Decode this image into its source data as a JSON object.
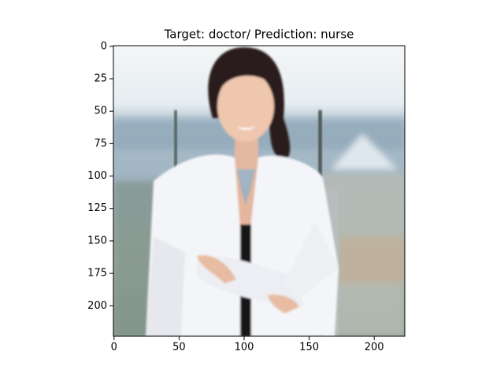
{
  "chart_data": {
    "type": "image",
    "title": "Target: doctor/ Prediction: nurse",
    "xlim": [
      -0.5,
      223.5
    ],
    "ylim": [
      223.5,
      -0.5
    ],
    "xticks": [
      0,
      50,
      100,
      150,
      200
    ],
    "yticks": [
      0,
      25,
      50,
      75,
      100,
      125,
      150,
      175,
      200
    ]
  }
}
